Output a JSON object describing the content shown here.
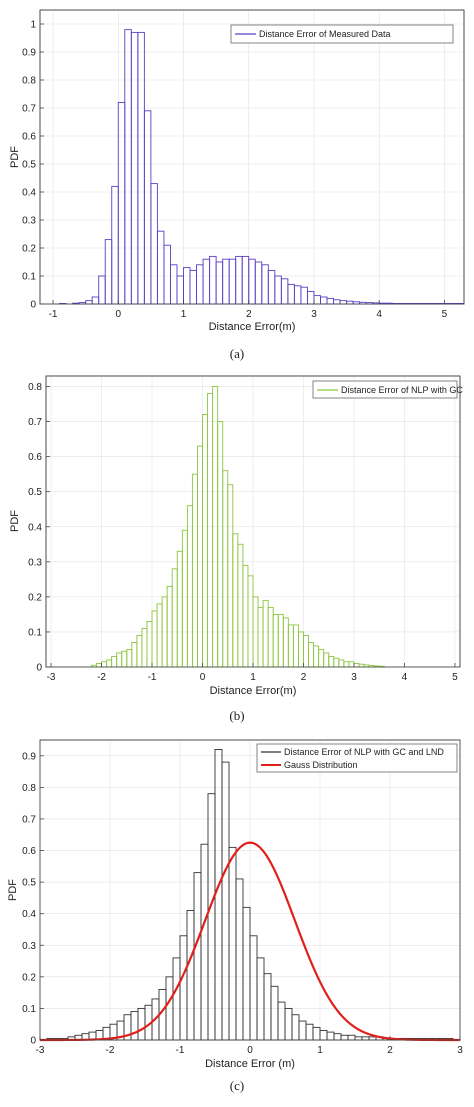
{
  "chart_data": [
    {
      "type": "bar",
      "caption": "(a)",
      "xlabel": "Distance Error(m)",
      "ylabel": "PDF",
      "xlim": [
        -1.2,
        5.3
      ],
      "ylim": [
        0,
        1.05
      ],
      "xticks": [
        -1,
        0,
        1,
        2,
        3,
        4,
        5
      ],
      "yticks": [
        0,
        0.1,
        0.2,
        0.3,
        0.4,
        0.5,
        0.6,
        0.7,
        0.8,
        0.9,
        1
      ],
      "grid": true,
      "legend_position": "top-right",
      "series": [
        {
          "name": "Distance Error of Measured Data",
          "color": "#5b3fc4",
          "bin_width": 0.1,
          "x_start": -1.0,
          "values": [
            0,
            0.002,
            0,
            0.003,
            0.005,
            0.012,
            0.025,
            0.1,
            0.23,
            0.42,
            0.72,
            0.98,
            0.97,
            0.97,
            0.69,
            0.43,
            0.26,
            0.21,
            0.14,
            0.1,
            0.13,
            0.12,
            0.14,
            0.16,
            0.17,
            0.15,
            0.16,
            0.16,
            0.17,
            0.17,
            0.16,
            0.15,
            0.14,
            0.12,
            0.1,
            0.09,
            0.07,
            0.065,
            0.06,
            0.045,
            0.03,
            0.025,
            0.02,
            0.015,
            0.012,
            0.01,
            0.008,
            0.006,
            0.005,
            0.004,
            0.003,
            0.003,
            0.002,
            0.002,
            0.002,
            0.002,
            0.002,
            0.002,
            0.002,
            0.002,
            0.002,
            0.002,
            0.002
          ]
        }
      ]
    },
    {
      "type": "bar",
      "caption": "(b)",
      "xlabel": "Distance Error(m)",
      "ylabel": "PDF",
      "xlim": [
        -3.1,
        5.1
      ],
      "ylim": [
        0,
        0.83
      ],
      "xticks": [
        -3,
        -2,
        -1,
        0,
        1,
        2,
        3,
        4,
        5
      ],
      "yticks": [
        0,
        0.1,
        0.2,
        0.3,
        0.4,
        0.5,
        0.6,
        0.7,
        0.8
      ],
      "grid": true,
      "legend_position": "top-right",
      "series": [
        {
          "name": "Distance Error of NLP with GC",
          "color": "#8cc63f",
          "bin_width": 0.1,
          "x_start": -2.2,
          "values": [
            0.005,
            0.01,
            0.015,
            0.02,
            0.03,
            0.04,
            0.045,
            0.05,
            0.07,
            0.09,
            0.11,
            0.13,
            0.16,
            0.18,
            0.2,
            0.23,
            0.28,
            0.33,
            0.39,
            0.46,
            0.55,
            0.63,
            0.72,
            0.78,
            0.8,
            0.7,
            0.56,
            0.52,
            0.38,
            0.35,
            0.29,
            0.26,
            0.2,
            0.17,
            0.19,
            0.17,
            0.15,
            0.15,
            0.14,
            0.12,
            0.12,
            0.1,
            0.09,
            0.07,
            0.06,
            0.05,
            0.04,
            0.03,
            0.025,
            0.02,
            0.015,
            0.015,
            0.01,
            0.008,
            0.006,
            0.004,
            0.003,
            0.002
          ]
        }
      ]
    },
    {
      "type": "bar",
      "caption": "(c)",
      "xlabel": "Distance Error (m)",
      "ylabel": "PDF",
      "xlim": [
        -3,
        3
      ],
      "ylim": [
        0,
        0.95
      ],
      "xticks": [
        -3,
        -2,
        -1,
        0,
        1,
        2,
        3
      ],
      "yticks": [
        0,
        0.1,
        0.2,
        0.3,
        0.4,
        0.5,
        0.6,
        0.7,
        0.8,
        0.9
      ],
      "grid": true,
      "legend_position": "top-right",
      "series": [
        {
          "name": "Distance Error of NLP with GC and LND",
          "color": "#333333",
          "bin_width": 0.1,
          "x_start": -2.9,
          "values": [
            0.005,
            0.005,
            0.005,
            0.01,
            0.015,
            0.02,
            0.025,
            0.03,
            0.04,
            0.05,
            0.06,
            0.08,
            0.09,
            0.1,
            0.11,
            0.13,
            0.16,
            0.2,
            0.26,
            0.33,
            0.41,
            0.53,
            0.62,
            0.78,
            0.92,
            0.88,
            0.61,
            0.51,
            0.42,
            0.33,
            0.26,
            0.21,
            0.17,
            0.12,
            0.1,
            0.08,
            0.06,
            0.05,
            0.04,
            0.03,
            0.025,
            0.02,
            0.015,
            0.015,
            0.01,
            0.01,
            0.01,
            0.01,
            0.005,
            0.005,
            0.005,
            0.005,
            0.005,
            0.005,
            0.005,
            0.005,
            0.005,
            0.005
          ]
        },
        {
          "name": "Gauss Distribution",
          "type": "line",
          "color": "#e0201b",
          "mean": 0,
          "sigma": 0.64,
          "peak": 0.625
        }
      ]
    }
  ]
}
